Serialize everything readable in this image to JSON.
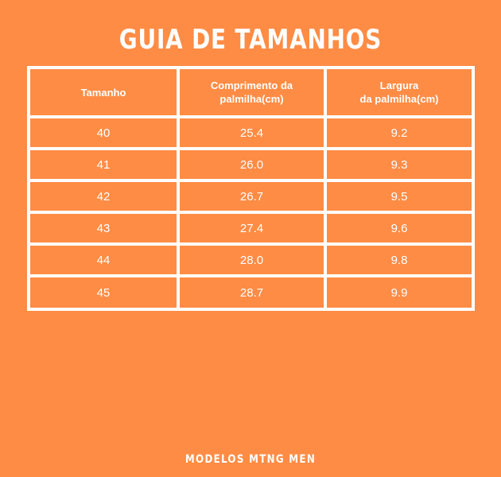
{
  "title": "GUIA DE TAMANHOS",
  "table": {
    "headers": [
      "Tamanho",
      "Comprimento da palmilha(cm)",
      "Largura\nda palmilha(cm)"
    ],
    "rows": [
      [
        "40",
        "25.4",
        "9.2"
      ],
      [
        "41",
        "26.0",
        "9.3"
      ],
      [
        "42",
        "26.7",
        "9.5"
      ],
      [
        "43",
        "27.4",
        "9.6"
      ],
      [
        "44",
        "28.0",
        "9.8"
      ],
      [
        "45",
        "28.7",
        "9.9"
      ]
    ]
  },
  "footer": "MODELOS MTNG MEN",
  "colors": {
    "background": "#FF8C45",
    "text": "#FFFFFF",
    "grid": "#FFFFFF"
  }
}
